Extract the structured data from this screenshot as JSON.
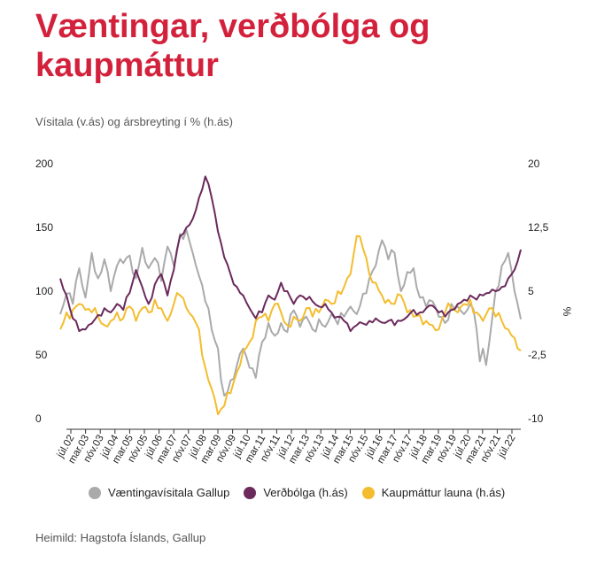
{
  "title": "Væntingar, verðbólga og kaupmáttur",
  "subtitle": "Vísitala (v.ás) og ársbreyting í % (h.ás)",
  "source": "Heimild: Hagstofa Íslands, Gallup",
  "chart_data": {
    "type": "line",
    "y_left": {
      "ticks": [
        "200",
        "150",
        "100",
        "50",
        "0"
      ],
      "range": [
        0,
        200
      ]
    },
    "y_right": {
      "ticks": [
        "20",
        "12,5",
        "5",
        "-2,5",
        "-10"
      ],
      "range": [
        -10,
        20
      ],
      "label": "%"
    },
    "x_ticks": [
      "júl.02",
      "mar.03",
      "nóv.03",
      "júl.04",
      "mar.05",
      "nóv.05",
      "júl.06",
      "mar.07",
      "nóv.07",
      "júl.08",
      "mar.09",
      "nóv.09",
      "júl.10",
      "mar.11",
      "nóv.11",
      "júl.12",
      "mar.13",
      "nóv.13",
      "júl.14",
      "mar.15",
      "nóv.15",
      "júl.16",
      "mar.17",
      "nóv.17",
      "júl.18",
      "mar.19",
      "nóv.19",
      "júl.20",
      "mar.21",
      "nóv.21",
      "júl.22"
    ],
    "grid": false,
    "legend_position": "bottom",
    "series": [
      {
        "name": "Væntingavísitala Gallup",
        "axis": "left",
        "color": "#aaaaaa",
        "anchors": [
          [
            0,
            82
          ],
          [
            2,
            98
          ],
          [
            4,
            90
          ],
          [
            6,
            118
          ],
          [
            8,
            95
          ],
          [
            10,
            130
          ],
          [
            12,
            110
          ],
          [
            14,
            125
          ],
          [
            16,
            100
          ],
          [
            18,
            120
          ],
          [
            20,
            122
          ],
          [
            22,
            128
          ],
          [
            24,
            110
          ],
          [
            26,
            134
          ],
          [
            28,
            118
          ],
          [
            30,
            126
          ],
          [
            32,
            108
          ],
          [
            34,
            135
          ],
          [
            36,
            120
          ],
          [
            38,
            145
          ],
          [
            40,
            148
          ],
          [
            42,
            130
          ],
          [
            44,
            112
          ],
          [
            46,
            92
          ],
          [
            48,
            70
          ],
          [
            50,
            55
          ],
          [
            51,
            30
          ],
          [
            52,
            18
          ],
          [
            54,
            30
          ],
          [
            56,
            42
          ],
          [
            58,
            55
          ],
          [
            60,
            40
          ],
          [
            62,
            32
          ],
          [
            64,
            60
          ],
          [
            66,
            75
          ],
          [
            68,
            65
          ],
          [
            70,
            75
          ],
          [
            72,
            68
          ],
          [
            74,
            85
          ],
          [
            76,
            72
          ],
          [
            78,
            80
          ],
          [
            80,
            70
          ],
          [
            82,
            78
          ],
          [
            84,
            72
          ],
          [
            86,
            82
          ],
          [
            88,
            74
          ],
          [
            90,
            80
          ],
          [
            92,
            88
          ],
          [
            94,
            82
          ],
          [
            96,
            98
          ],
          [
            98,
            110
          ],
          [
            100,
            120
          ],
          [
            102,
            140
          ],
          [
            104,
            125
          ],
          [
            106,
            130
          ],
          [
            108,
            100
          ],
          [
            110,
            115
          ],
          [
            112,
            118
          ],
          [
            114,
            95
          ],
          [
            116,
            88
          ],
          [
            118,
            92
          ],
          [
            120,
            80
          ],
          [
            122,
            75
          ],
          [
            124,
            90
          ],
          [
            126,
            88
          ],
          [
            128,
            82
          ],
          [
            130,
            90
          ],
          [
            132,
            70
          ],
          [
            133,
            45
          ],
          [
            134,
            55
          ],
          [
            135,
            42
          ],
          [
            136,
            60
          ],
          [
            138,
            100
          ],
          [
            140,
            120
          ],
          [
            142,
            130
          ],
          [
            144,
            100
          ],
          [
            145,
            90
          ],
          [
            146,
            78
          ]
        ]
      },
      {
        "name": "Verðbólga (h.ás)",
        "axis": "right",
        "color": "#6b2a5b",
        "anchors": [
          [
            0,
            6.5
          ],
          [
            2,
            4.5
          ],
          [
            4,
            1.8
          ],
          [
            6,
            0.3
          ],
          [
            8,
            0.5
          ],
          [
            10,
            1.2
          ],
          [
            12,
            2.2
          ],
          [
            14,
            3.0
          ],
          [
            16,
            2.5
          ],
          [
            18,
            3.5
          ],
          [
            20,
            2.8
          ],
          [
            22,
            4.8
          ],
          [
            24,
            7.5
          ],
          [
            26,
            5.5
          ],
          [
            28,
            3.5
          ],
          [
            30,
            5.8
          ],
          [
            32,
            7.0
          ],
          [
            34,
            4.5
          ],
          [
            36,
            7.5
          ],
          [
            38,
            11.5
          ],
          [
            40,
            12.5
          ],
          [
            42,
            13.5
          ],
          [
            44,
            16.0
          ],
          [
            46,
            18.5
          ],
          [
            48,
            16.0
          ],
          [
            50,
            12.0
          ],
          [
            52,
            9.0
          ],
          [
            54,
            7.0
          ],
          [
            56,
            5.5
          ],
          [
            58,
            4.5
          ],
          [
            60,
            3.0
          ],
          [
            62,
            1.8
          ],
          [
            64,
            2.5
          ],
          [
            66,
            4.5
          ],
          [
            68,
            4.0
          ],
          [
            70,
            6.0
          ],
          [
            72,
            5.0
          ],
          [
            74,
            3.5
          ],
          [
            76,
            4.5
          ],
          [
            78,
            4.0
          ],
          [
            80,
            3.8
          ],
          [
            82,
            3.2
          ],
          [
            84,
            3.5
          ],
          [
            86,
            2.5
          ],
          [
            88,
            2.0
          ],
          [
            90,
            1.5
          ],
          [
            92,
            0.3
          ],
          [
            94,
            1.0
          ],
          [
            96,
            1.2
          ],
          [
            98,
            1.5
          ],
          [
            100,
            1.8
          ],
          [
            102,
            1.3
          ],
          [
            104,
            1.5
          ],
          [
            106,
            1.0
          ],
          [
            108,
            1.5
          ],
          [
            110,
            2.0
          ],
          [
            112,
            2.8
          ],
          [
            114,
            2.5
          ],
          [
            116,
            3.0
          ],
          [
            118,
            3.3
          ],
          [
            120,
            2.5
          ],
          [
            122,
            2.0
          ],
          [
            124,
            2.8
          ],
          [
            126,
            3.5
          ],
          [
            128,
            4.0
          ],
          [
            130,
            4.5
          ],
          [
            132,
            4.0
          ],
          [
            134,
            4.5
          ],
          [
            136,
            4.8
          ],
          [
            138,
            5.0
          ],
          [
            140,
            5.5
          ],
          [
            142,
            6.5
          ],
          [
            144,
            7.5
          ],
          [
            146,
            9.9
          ]
        ]
      },
      {
        "name": "Kaupmáttur launa (h.ás)",
        "axis": "right",
        "color": "#f3bd2f",
        "anchors": [
          [
            0,
            0.5
          ],
          [
            2,
            2.5
          ],
          [
            4,
            2.8
          ],
          [
            6,
            3.5
          ],
          [
            8,
            2.8
          ],
          [
            10,
            2.5
          ],
          [
            12,
            2.0
          ],
          [
            14,
            1.0
          ],
          [
            16,
            1.5
          ],
          [
            18,
            2.5
          ],
          [
            20,
            1.8
          ],
          [
            22,
            3.2
          ],
          [
            24,
            1.5
          ],
          [
            26,
            3.0
          ],
          [
            28,
            2.5
          ],
          [
            30,
            4.0
          ],
          [
            32,
            3.0
          ],
          [
            34,
            1.5
          ],
          [
            36,
            3.5
          ],
          [
            38,
            4.5
          ],
          [
            40,
            3.0
          ],
          [
            42,
            2.0
          ],
          [
            44,
            0.5
          ],
          [
            46,
            -4.0
          ],
          [
            48,
            -6.5
          ],
          [
            50,
            -9.5
          ],
          [
            52,
            -8.5
          ],
          [
            54,
            -7.0
          ],
          [
            56,
            -4.5
          ],
          [
            58,
            -2.0
          ],
          [
            60,
            -1.0
          ],
          [
            62,
            1.5
          ],
          [
            64,
            2.0
          ],
          [
            66,
            1.5
          ],
          [
            68,
            3.5
          ],
          [
            70,
            2.5
          ],
          [
            72,
            1.0
          ],
          [
            74,
            2.0
          ],
          [
            76,
            1.5
          ],
          [
            78,
            3.0
          ],
          [
            80,
            2.0
          ],
          [
            82,
            2.5
          ],
          [
            84,
            4.0
          ],
          [
            86,
            3.5
          ],
          [
            88,
            5.0
          ],
          [
            90,
            5.5
          ],
          [
            92,
            7.0
          ],
          [
            94,
            11.5
          ],
          [
            96,
            10.0
          ],
          [
            98,
            7.0
          ],
          [
            100,
            6.0
          ],
          [
            102,
            4.5
          ],
          [
            104,
            4.0
          ],
          [
            106,
            3.5
          ],
          [
            108,
            4.5
          ],
          [
            110,
            2.5
          ],
          [
            112,
            2.0
          ],
          [
            114,
            2.2
          ],
          [
            116,
            1.5
          ],
          [
            118,
            1.0
          ],
          [
            120,
            0.5
          ],
          [
            122,
            2.5
          ],
          [
            124,
            3.0
          ],
          [
            126,
            2.5
          ],
          [
            128,
            3.5
          ],
          [
            130,
            4.0
          ],
          [
            132,
            2.5
          ],
          [
            134,
            1.5
          ],
          [
            136,
            3.0
          ],
          [
            138,
            2.0
          ],
          [
            140,
            1.5
          ],
          [
            142,
            0.5
          ],
          [
            144,
            -0.5
          ],
          [
            146,
            -2.0
          ]
        ]
      }
    ]
  }
}
